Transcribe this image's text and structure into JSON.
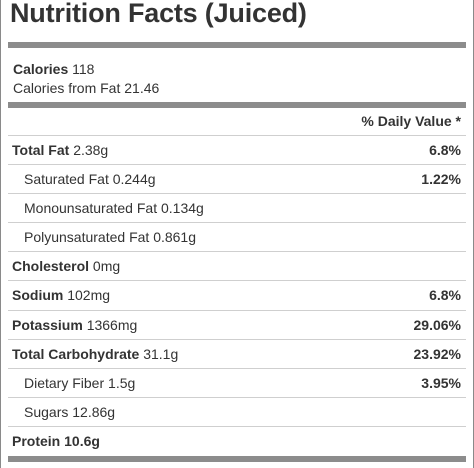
{
  "title": "Nutrition Facts (Juiced)",
  "calories": {
    "label": "Calories",
    "value": "118"
  },
  "calories_from_fat": {
    "label": "Calories from Fat",
    "value": "21.46"
  },
  "daily_value_header": "% Daily Value *",
  "rows": [
    {
      "label": "Total Fat",
      "amount": "2.38g",
      "percent": "6.8%"
    },
    {
      "label": "Saturated Fat",
      "amount": "0.244g",
      "percent": "1.22%"
    },
    {
      "label": "Monounsaturated Fat",
      "amount": "0.134g",
      "percent": ""
    },
    {
      "label": "Polyunsaturated Fat",
      "amount": "0.861g",
      "percent": ""
    },
    {
      "label": "Cholesterol",
      "amount": "0mg",
      "percent": ""
    },
    {
      "label": "Sodium",
      "amount": "102mg",
      "percent": "6.8%"
    },
    {
      "label": "Potassium",
      "amount": "1366mg",
      "percent": "29.06%"
    },
    {
      "label": "Total Carbohydrate",
      "amount": "31.1g",
      "percent": "23.92%"
    },
    {
      "label": "Dietary Fiber",
      "amount": "1.5g",
      "percent": "3.95%"
    },
    {
      "label": "Sugars",
      "amount": "12.86g",
      "percent": ""
    },
    {
      "label": "Protein",
      "amount": "10.6g",
      "percent": ""
    }
  ]
}
